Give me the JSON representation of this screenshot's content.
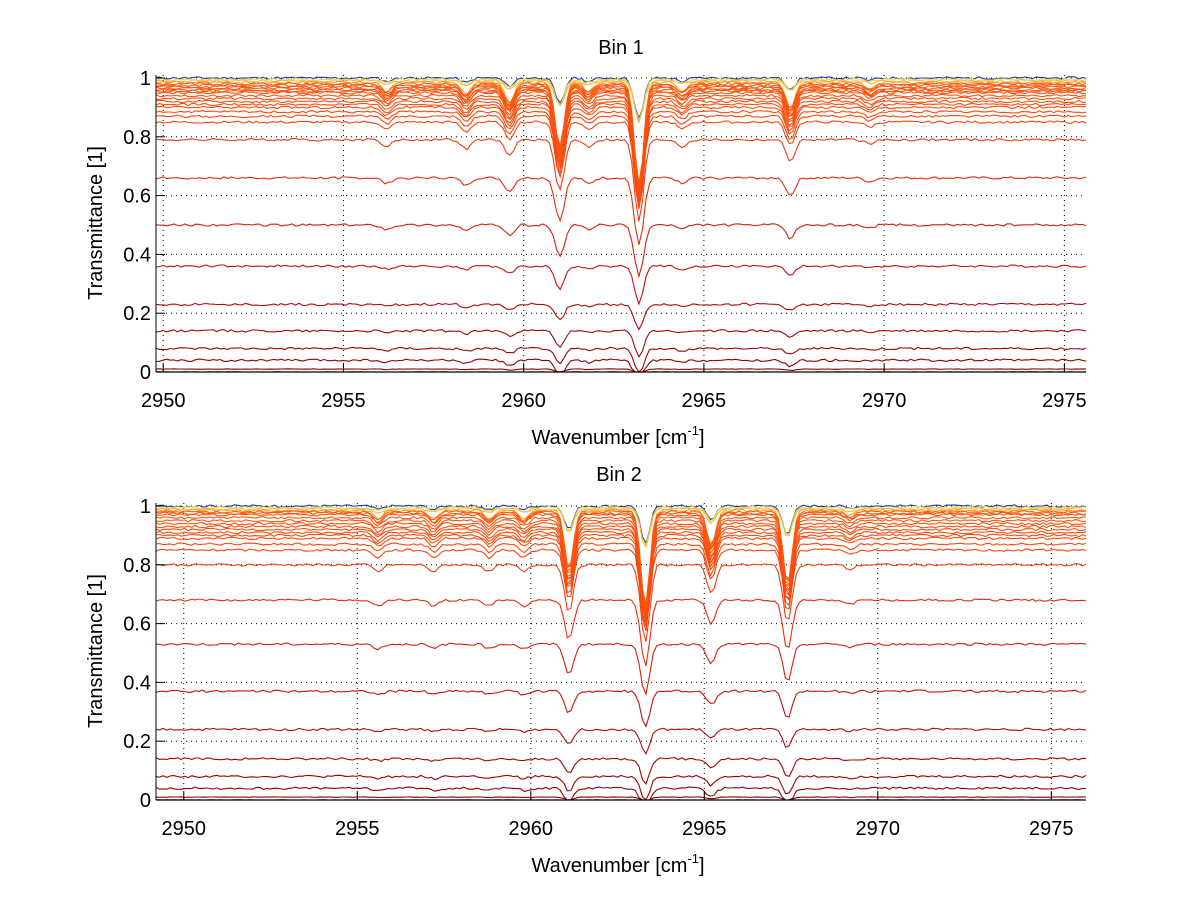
{
  "chart_data": [
    {
      "type": "line",
      "title": "Bin 1",
      "xlabel": "Wavenumber [cm",
      "xlabel_sup": "-1",
      "xlabel_end": "]",
      "ylabel": "Transmittance [1]",
      "xlim": [
        2949.8,
        2975.6
      ],
      "ylim": [
        0,
        1
      ],
      "xticks": [
        2950,
        2955,
        2960,
        2965,
        2970,
        2975
      ],
      "xtick_labels": [
        "2950",
        "2955",
        "2960",
        "2965",
        "2970",
        "2975"
      ],
      "yticks": [
        0,
        0.2,
        0.4,
        0.6,
        0.8,
        1
      ],
      "ytick_labels": [
        "0",
        "0.2",
        "0.4",
        "0.6",
        "0.8",
        "1"
      ],
      "grid": true,
      "series_baselines": [
        1.0,
        0.995,
        0.99,
        0.985,
        0.98,
        0.975,
        0.97,
        0.965,
        0.96,
        0.955,
        0.95,
        0.94,
        0.93,
        0.92,
        0.91,
        0.9,
        0.885,
        0.87,
        0.85,
        0.79,
        0.66,
        0.5,
        0.36,
        0.23,
        0.14,
        0.08,
        0.04,
        0.01,
        0.0
      ],
      "absorption_lines": [
        {
          "x": 2956.2,
          "depth": 0.03
        },
        {
          "x": 2958.4,
          "depth": 0.04
        },
        {
          "x": 2959.6,
          "depth": 0.07
        },
        {
          "x": 2961.0,
          "depth": 0.22
        },
        {
          "x": 2961.8,
          "depth": 0.03
        },
        {
          "x": 2963.2,
          "depth": 0.35
        },
        {
          "x": 2964.4,
          "depth": 0.03
        },
        {
          "x": 2967.4,
          "depth": 0.09
        },
        {
          "x": 2969.6,
          "depth": 0.02
        }
      ],
      "colormap": [
        "#0a1f8a",
        "#2a6fd6",
        "#7fd6e8",
        "#f0e060",
        "#ffa020",
        "#ff5a10",
        "#e82a0e",
        "#c01010",
        "#8b0000"
      ]
    },
    {
      "type": "line",
      "title": "Bin 2",
      "xlabel": "Wavenumber [cm",
      "xlabel_sup": "-1",
      "xlabel_end": "]",
      "ylabel": "Transmittance [1]",
      "xlim": [
        2949.2,
        2976.0
      ],
      "ylim": [
        0,
        1
      ],
      "xticks": [
        2950,
        2955,
        2960,
        2965,
        2970,
        2975
      ],
      "xtick_labels": [
        "2950",
        "2955",
        "2960",
        "2965",
        "2970",
        "2975"
      ],
      "yticks": [
        0,
        0.2,
        0.4,
        0.6,
        0.8,
        1
      ],
      "ytick_labels": [
        "0",
        "0.2",
        "0.4",
        "0.6",
        "0.8",
        "1"
      ],
      "grid": true,
      "series_baselines": [
        1.0,
        0.995,
        0.99,
        0.985,
        0.98,
        0.975,
        0.97,
        0.96,
        0.95,
        0.94,
        0.93,
        0.92,
        0.91,
        0.9,
        0.89,
        0.87,
        0.85,
        0.8,
        0.68,
        0.53,
        0.37,
        0.24,
        0.14,
        0.08,
        0.04,
        0.01,
        0.0
      ],
      "absorption_lines": [
        {
          "x": 2955.6,
          "depth": 0.03
        },
        {
          "x": 2957.2,
          "depth": 0.03
        },
        {
          "x": 2958.8,
          "depth": 0.03
        },
        {
          "x": 2959.8,
          "depth": 0.03
        },
        {
          "x": 2961.1,
          "depth": 0.2
        },
        {
          "x": 2963.3,
          "depth": 0.33
        },
        {
          "x": 2965.2,
          "depth": 0.12
        },
        {
          "x": 2967.4,
          "depth": 0.25
        },
        {
          "x": 2969.2,
          "depth": 0.02
        }
      ],
      "colormap": [
        "#0a1f8a",
        "#2a6fd6",
        "#7fd6e8",
        "#f0e060",
        "#ffa020",
        "#ff5a10",
        "#e82a0e",
        "#c01010",
        "#8b0000"
      ]
    }
  ]
}
